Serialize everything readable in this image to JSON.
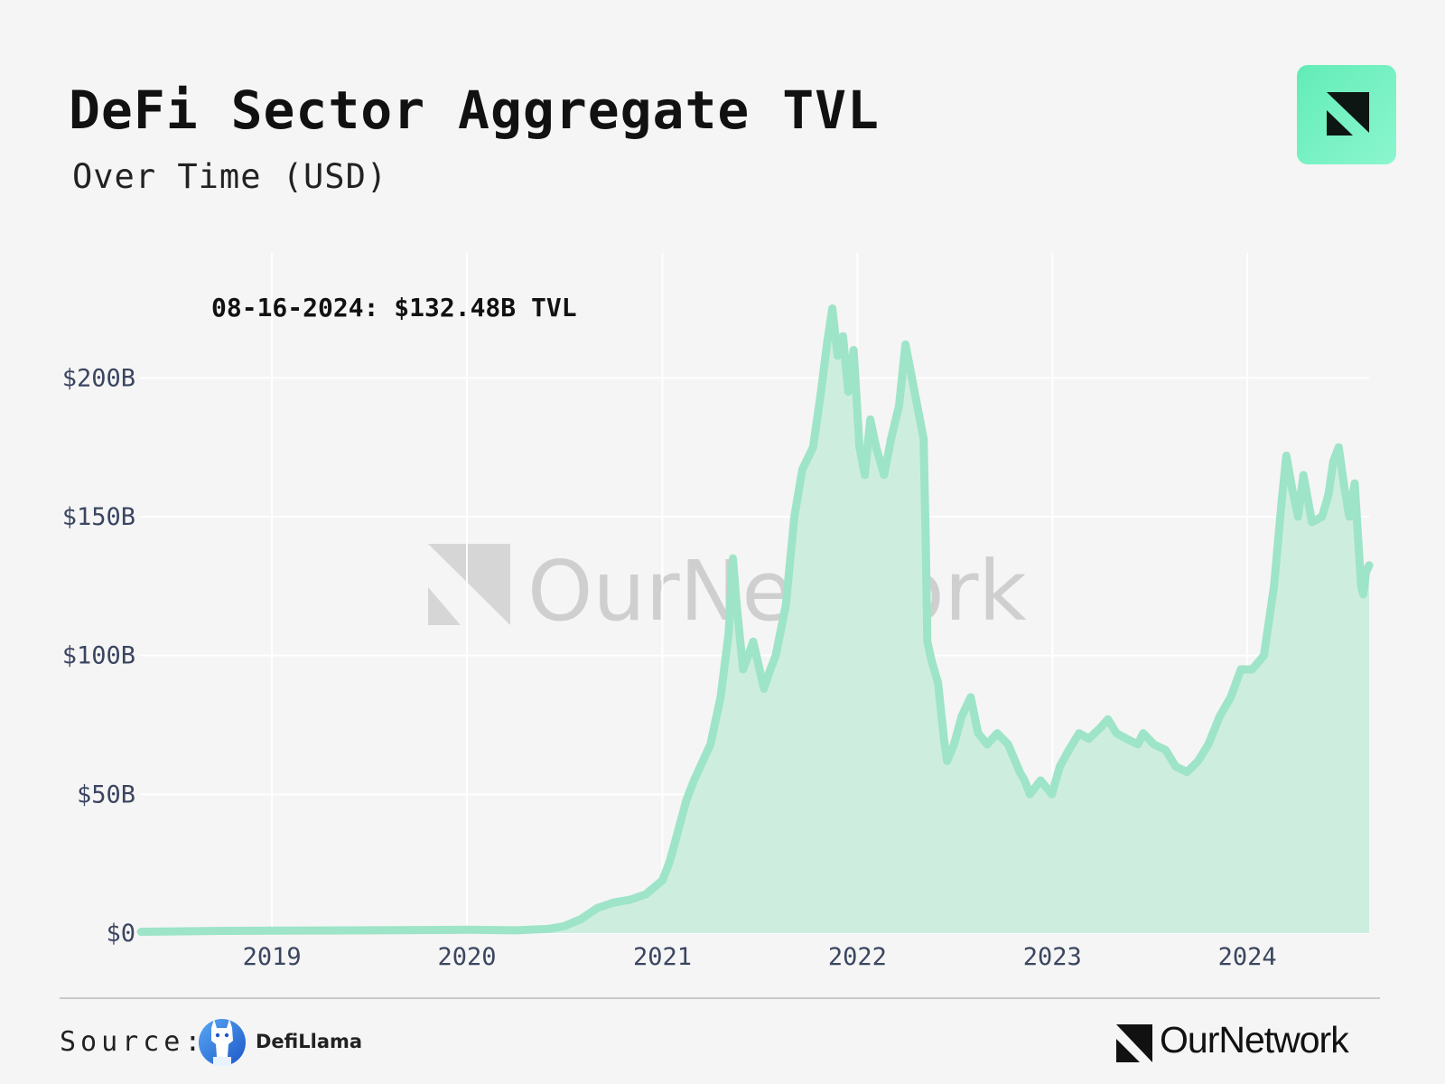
{
  "title": "DeFi Sector Aggregate TVL",
  "subtitle": "Over Time (USD)",
  "source_label": "Source:",
  "source_name": "DefiLlama",
  "brand_name": "OurNetwork",
  "watermark_text": "OurNetwork",
  "colors": {
    "area_fill": "#cdeedf",
    "line": "#9ee4c8",
    "background": "#f5f5f5",
    "badge": "#6ef0bf"
  },
  "icons": {
    "badge": "ournetwork-logo-icon",
    "source": "defillama-llama-icon",
    "brand": "ournetwork-mark-icon"
  },
  "chart_data": {
    "type": "area",
    "annotation": "08-16-2024: $132.48B TVL",
    "x_ticks": [
      "2019",
      "2020",
      "2021",
      "2022",
      "2023",
      "2024"
    ],
    "y_ticks": [
      "$0",
      "$50B",
      "$100B",
      "$150B",
      "$200B"
    ],
    "y_tick_values": [
      0,
      50,
      100,
      150,
      200
    ],
    "y_unit": "USD billions",
    "xlim": [
      "2018-04-29",
      "2024-08-16"
    ],
    "ylim": [
      0,
      245
    ],
    "grid": true,
    "series": [
      {
        "x": [
          "2018-05-01",
          "2018-10-01",
          "2019-01-01",
          "2019-07-01",
          "2020-01-01",
          "2020-04-01",
          "2020-06-01",
          "2020-07-01",
          "2020-08-01",
          "2020-09-01",
          "2020-10-01",
          "2020-11-01",
          "2020-12-01",
          "2021-01-01",
          "2021-01-15",
          "2021-02-01",
          "2021-02-15",
          "2021-03-01",
          "2021-04-01",
          "2021-04-20",
          "2021-05-05",
          "2021-05-13",
          "2021-05-20",
          "2021-06-01",
          "2021-06-20",
          "2021-07-10",
          "2021-07-20",
          "2021-08-01",
          "2021-08-20",
          "2021-09-05",
          "2021-09-20",
          "2021-10-10",
          "2021-10-25",
          "2021-11-05",
          "2021-11-15",
          "2021-11-25",
          "2021-12-05",
          "2021-12-15",
          "2021-12-25",
          "2022-01-05",
          "2022-01-15",
          "2022-01-25",
          "2022-02-05",
          "2022-02-20",
          "2022-03-05",
          "2022-03-20",
          "2022-04-01",
          "2022-04-15",
          "2022-04-25",
          "2022-05-05",
          "2022-05-09",
          "2022-05-12",
          "2022-05-20",
          "2022-06-01",
          "2022-06-12",
          "2022-06-18",
          "2022-07-01",
          "2022-07-15",
          "2022-08-01",
          "2022-08-15",
          "2022-09-01",
          "2022-09-20",
          "2022-10-10",
          "2022-11-01",
          "2022-11-10",
          "2022-11-20",
          "2022-12-10",
          "2022-12-31",
          "2023-01-15",
          "2023-02-01",
          "2023-02-20",
          "2023-03-10",
          "2023-04-01",
          "2023-04-15",
          "2023-05-01",
          "2023-05-20",
          "2023-06-10",
          "2023-06-20",
          "2023-07-10",
          "2023-08-01",
          "2023-08-20",
          "2023-09-10",
          "2023-10-01",
          "2023-10-20",
          "2023-11-10",
          "2023-12-01",
          "2023-12-20",
          "2024-01-10",
          "2024-02-01",
          "2024-02-20",
          "2024-03-05",
          "2024-03-14",
          "2024-03-25",
          "2024-04-05",
          "2024-04-15",
          "2024-05-01",
          "2024-05-20",
          "2024-06-01",
          "2024-06-10",
          "2024-06-20",
          "2024-07-01",
          "2024-07-10",
          "2024-07-20",
          "2024-08-01",
          "2024-08-05",
          "2024-08-10",
          "2024-08-16"
        ],
        "values": [
          0.5,
          0.8,
          0.9,
          1.0,
          1.2,
          1.0,
          1.5,
          2.5,
          5.0,
          9.0,
          11.0,
          12.0,
          14.0,
          19.0,
          26.0,
          38.0,
          48.0,
          55.0,
          68.0,
          85.0,
          108.0,
          135.0,
          118.0,
          95.0,
          105.0,
          88.0,
          94.0,
          100.0,
          118.0,
          150.0,
          167.0,
          175.0,
          195.0,
          212.0,
          225.0,
          208.0,
          215.0,
          195.0,
          210.0,
          175.0,
          165.0,
          185.0,
          175.0,
          165.0,
          178.0,
          190.0,
          212.0,
          198.0,
          188.0,
          178.0,
          140.0,
          105.0,
          98.0,
          90.0,
          70.0,
          62.0,
          68.0,
          78.0,
          85.0,
          72.0,
          68.0,
          72.0,
          68.0,
          58.0,
          55.0,
          50.0,
          55.0,
          50.0,
          60.0,
          66.0,
          72.0,
          70.0,
          74.0,
          77.0,
          72.0,
          70.0,
          68.0,
          72.0,
          68.0,
          66.0,
          60.0,
          58.0,
          62.0,
          68.0,
          78.0,
          85.0,
          95.0,
          95.0,
          100.0,
          125.0,
          155.0,
          172.0,
          160.0,
          150.0,
          165.0,
          148.0,
          150.0,
          158.0,
          170.0,
          175.0,
          160.0,
          150.0,
          162.0,
          125.0,
          122.0,
          130.0,
          132.48
        ]
      }
    ]
  }
}
